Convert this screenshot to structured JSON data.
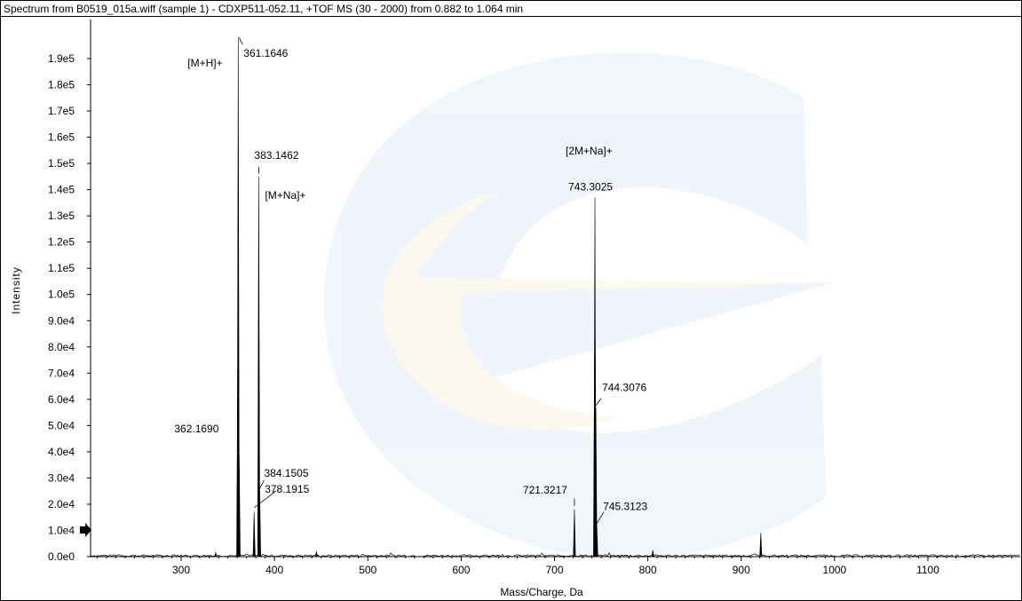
{
  "chart_data": {
    "type": "line",
    "title": "Spectrum from B0519_015a.wiff (sample 1) - CDXP511-052.11, +TOF MS (30 - 2000) from 0.882 to 1.064 min",
    "xlabel": "Mass/Charge, Da",
    "ylabel": "Intensity",
    "xlim": [
      205,
      1200
    ],
    "ylim": [
      0,
      198000
    ],
    "grid": false,
    "x_ticks": [
      300,
      400,
      500,
      600,
      700,
      800,
      900,
      1000,
      1100
    ],
    "y_ticks": [
      {
        "value": 0,
        "label": "0.0e0"
      },
      {
        "value": 10000,
        "label": "1.0e4"
      },
      {
        "value": 20000,
        "label": "2.0e4"
      },
      {
        "value": 30000,
        "label": "3.0e4"
      },
      {
        "value": 40000,
        "label": "4.0e4"
      },
      {
        "value": 50000,
        "label": "5.0e4"
      },
      {
        "value": 60000,
        "label": "6.0e4"
      },
      {
        "value": 70000,
        "label": "7.0e4"
      },
      {
        "value": 80000,
        "label": "8.0e4"
      },
      {
        "value": 90000,
        "label": "9.0e4"
      },
      {
        "value": 100000,
        "label": "1.0e5"
      },
      {
        "value": 110000,
        "label": "1.1e5"
      },
      {
        "value": 120000,
        "label": "1.2e5"
      },
      {
        "value": 130000,
        "label": "1.3e5"
      },
      {
        "value": 140000,
        "label": "1.4e5"
      },
      {
        "value": 150000,
        "label": "1.5e5"
      },
      {
        "value": 160000,
        "label": "1.6e5"
      },
      {
        "value": 170000,
        "label": "1.7e5"
      },
      {
        "value": 180000,
        "label": "1.8e5"
      },
      {
        "value": 190000,
        "label": "1.9e5"
      }
    ],
    "peaks": [
      {
        "x": 361.1646,
        "y": 198000,
        "label": "361.1646"
      },
      {
        "x": 360.6,
        "y": 72000,
        "label": ""
      },
      {
        "x": 362.169,
        "y": 39000,
        "label": "362.1690"
      },
      {
        "x": 378.1915,
        "y": 17000,
        "label": "378.1915"
      },
      {
        "x": 383.1462,
        "y": 145000,
        "label": "383.1462"
      },
      {
        "x": 384.1505,
        "y": 25000,
        "label": "384.1505"
      },
      {
        "x": 721.3217,
        "y": 18000,
        "label": "721.3217"
      },
      {
        "x": 743.3025,
        "y": 137000,
        "label": "743.3025"
      },
      {
        "x": 742.9,
        "y": 78000,
        "label": ""
      },
      {
        "x": 744.3076,
        "y": 57000,
        "label": "744.3076"
      },
      {
        "x": 745.3123,
        "y": 12000,
        "label": "745.3123"
      },
      {
        "x": 805.3,
        "y": 2500,
        "label": ""
      },
      {
        "x": 921.0,
        "y": 9000,
        "label": ""
      },
      {
        "x": 337.0,
        "y": 1500,
        "label": ""
      },
      {
        "x": 445.0,
        "y": 2000,
        "label": ""
      }
    ],
    "annotations": [
      {
        "text": "[M+H]+",
        "x": 361.1646
      },
      {
        "text": "[M+Na]+",
        "x": 383.1462
      },
      {
        "text": "[2M+Na]+",
        "x": 743.3025
      }
    ]
  }
}
